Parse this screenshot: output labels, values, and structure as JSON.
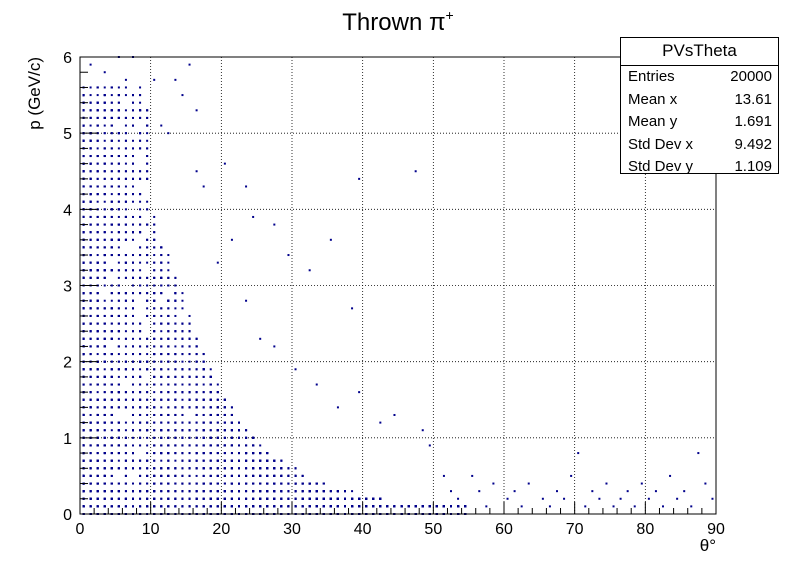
{
  "chart_data": {
    "type": "scatter",
    "title": "Thrown π⁺",
    "title_main": "Thrown π",
    "title_sup": "+",
    "xlabel": "θ°",
    "ylabel": "p (GeV/c)",
    "xlim": [
      0,
      90
    ],
    "ylim": [
      0,
      6
    ],
    "x_ticks": [
      "0",
      "10",
      "20",
      "30",
      "40",
      "50",
      "60",
      "70",
      "80",
      "90"
    ],
    "y_ticks": [
      "0",
      "1",
      "2",
      "3",
      "4",
      "5",
      "6"
    ],
    "grid": true,
    "marker_color": "#00008b",
    "series": [
      {
        "points": [
          [
            1.5,
            5.9
          ],
          [
            3.5,
            5.8
          ],
          [
            5.5,
            6.0
          ],
          [
            6.5,
            5.7
          ],
          [
            7.5,
            6.0
          ],
          [
            8.5,
            5.3
          ],
          [
            10.5,
            5.7
          ],
          [
            11.5,
            5.1
          ],
          [
            12.5,
            5.0
          ],
          [
            13.5,
            5.7
          ],
          [
            14.5,
            5.5
          ],
          [
            15.5,
            5.9
          ],
          [
            16.5,
            5.3
          ],
          [
            16.5,
            4.5
          ],
          [
            17.5,
            4.3
          ],
          [
            19.5,
            3.3
          ],
          [
            20.5,
            4.6
          ],
          [
            21.5,
            3.6
          ],
          [
            23.5,
            4.3
          ],
          [
            24.5,
            3.9
          ],
          [
            27.5,
            3.8
          ],
          [
            29.5,
            3.4
          ],
          [
            32.5,
            3.2
          ],
          [
            35.5,
            3.6
          ],
          [
            38.5,
            2.7
          ],
          [
            39.5,
            4.4
          ],
          [
            47.5,
            4.5
          ],
          [
            23.5,
            2.8
          ],
          [
            25.5,
            2.3
          ],
          [
            27.5,
            2.2
          ],
          [
            30.5,
            1.9
          ],
          [
            33.5,
            1.7
          ],
          [
            36.5,
            1.4
          ],
          [
            39.5,
            1.6
          ],
          [
            42.5,
            1.2
          ],
          [
            44.5,
            1.3
          ],
          [
            48.5,
            1.1
          ],
          [
            49.5,
            0.9
          ],
          [
            51.5,
            0.5
          ],
          [
            52.5,
            0.3
          ],
          [
            53.5,
            0.2
          ],
          [
            55.5,
            0.5
          ],
          [
            56.5,
            0.3
          ],
          [
            57.5,
            0.1
          ],
          [
            58.5,
            0.4
          ],
          [
            60.5,
            0.2
          ],
          [
            61.5,
            0.3
          ],
          [
            62.5,
            0.1
          ],
          [
            63.5,
            0.4
          ],
          [
            65.5,
            0.2
          ],
          [
            66.5,
            0.1
          ],
          [
            67.5,
            0.3
          ],
          [
            68.5,
            0.2
          ],
          [
            69.5,
            0.5
          ],
          [
            70.5,
            0.8
          ],
          [
            71.5,
            0.1
          ],
          [
            72.5,
            0.3
          ],
          [
            73.5,
            0.2
          ],
          [
            74.5,
            0.4
          ],
          [
            75.5,
            0.1
          ],
          [
            76.5,
            0.2
          ],
          [
            77.5,
            0.3
          ],
          [
            78.5,
            0.1
          ],
          [
            79.5,
            0.4
          ],
          [
            80.5,
            0.2
          ],
          [
            81.5,
            0.3
          ],
          [
            82.5,
            0.1
          ],
          [
            83.5,
            0.5
          ],
          [
            84.5,
            0.2
          ],
          [
            85.5,
            0.3
          ],
          [
            86.5,
            0.1
          ],
          [
            87.5,
            0.8
          ],
          [
            88.5,
            0.4
          ],
          [
            89.5,
            0.2
          ]
        ]
      }
    ]
  },
  "stats_box": {
    "name": "PVsTheta",
    "rows": [
      {
        "label": "Entries",
        "value": "20000"
      },
      {
        "label": "Mean x",
        "value": "13.61"
      },
      {
        "label": "Mean y",
        "value": "1.691"
      },
      {
        "label": "Std Dev x",
        "value": "9.492"
      },
      {
        "label": "Std Dev y",
        "value": "1.109"
      }
    ]
  }
}
